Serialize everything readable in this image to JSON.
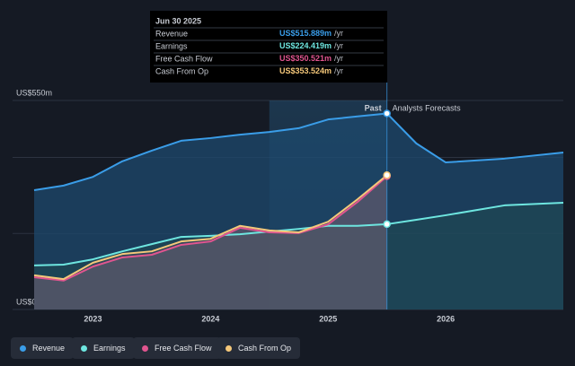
{
  "chart_data": {
    "type": "line",
    "x": [
      2022.5,
      2022.75,
      2023,
      2023.25,
      2023.5,
      2023.75,
      2024,
      2024.25,
      2024.5,
      2024.75,
      2025,
      2025.25,
      2025.5,
      2025.75,
      2026,
      2026.5,
      2027
    ],
    "series": [
      {
        "name": "Revenue",
        "color": "#3a9de8",
        "values": [
          314,
          326,
          349,
          390,
          418,
          444,
          451,
          460,
          467,
          477,
          500,
          508,
          515.889,
          437,
          387,
          397,
          413
        ]
      },
      {
        "name": "Earnings",
        "color": "#6ee6e0",
        "values": [
          116,
          118,
          132,
          153,
          172,
          191,
          194,
          198,
          205,
          212,
          220,
          220,
          224.419,
          236,
          248,
          274,
          281
        ]
      },
      {
        "name": "Free Cash Flow",
        "color": "#e0558f",
        "values": [
          85,
          76,
          113,
          137,
          144,
          170,
          179,
          215,
          203,
          201,
          224,
          283,
          350.521,
          null,
          null,
          null,
          null
        ]
      },
      {
        "name": "Cash From Op",
        "color": "#f5c87a",
        "values": [
          90,
          80,
          123,
          146,
          153,
          179,
          186,
          220,
          208,
          203,
          231,
          290,
          353.524,
          null,
          null,
          null,
          null
        ]
      }
    ],
    "xlim": [
      2022.5,
      2027
    ],
    "xticks": [
      2023,
      2024,
      2025,
      2026
    ],
    "ylim": [
      0,
      550
    ],
    "yticks": [
      {
        "value": 550,
        "label": "US$550m"
      },
      {
        "value": 0,
        "label": "US$0"
      }
    ],
    "grid_lines": [
      200,
      400
    ],
    "divider": 2025.5,
    "highlight": [
      2024.5,
      2025.5
    ],
    "past_label": "Past",
    "forecast_label": "Analysts Forecasts",
    "tooltip": {
      "date": "Jun 30 2025",
      "labels": [
        "US$515.889m",
        "US$224.419m",
        "US$350.521m",
        "US$353.524m"
      ],
      "unit": "/yr"
    }
  }
}
